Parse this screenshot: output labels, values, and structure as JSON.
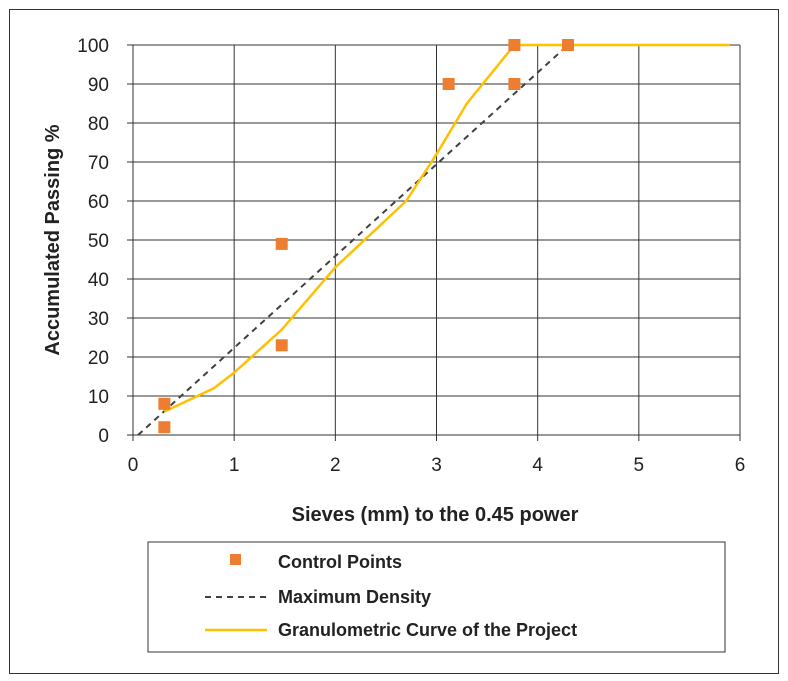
{
  "chart_data": {
    "type": "line",
    "xlabel": "Sieves (mm) to the 0.45 power",
    "ylabel": "Accumulated Passing %",
    "xlim": [
      0,
      6
    ],
    "ylim": [
      0,
      100
    ],
    "xticks": [
      0,
      1,
      2,
      3,
      4,
      5,
      6
    ],
    "yticks": [
      0,
      10,
      20,
      30,
      40,
      50,
      60,
      70,
      80,
      90,
      100
    ],
    "grid": true,
    "legend_position": "bottom",
    "series": [
      {
        "name": "Control Points",
        "kind": "scatter",
        "color": "#ED7D31",
        "points": [
          [
            0.31,
            2
          ],
          [
            0.31,
            8
          ],
          [
            1.47,
            23
          ],
          [
            1.47,
            49
          ],
          [
            3.12,
            90
          ],
          [
            3.77,
            90
          ],
          [
            3.77,
            100
          ],
          [
            4.3,
            100
          ]
        ]
      },
      {
        "name": "Maximum Density",
        "kind": "dashed-line",
        "color": "#404040",
        "points": [
          [
            0.05,
            0
          ],
          [
            4.3,
            100
          ]
        ]
      },
      {
        "name": "Granulometric Curve of the Project",
        "kind": "line",
        "color": "#FFC000",
        "points": [
          [
            0.31,
            6
          ],
          [
            0.8,
            12
          ],
          [
            1.0,
            16
          ],
          [
            1.47,
            27
          ],
          [
            2.0,
            43
          ],
          [
            2.7,
            60
          ],
          [
            3.0,
            72
          ],
          [
            3.3,
            85
          ],
          [
            3.77,
            100
          ],
          [
            4.3,
            100
          ],
          [
            5.9,
            100
          ]
        ]
      }
    ]
  }
}
